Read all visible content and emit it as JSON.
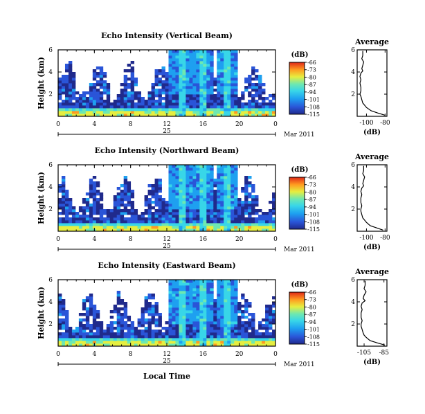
{
  "chart_data": [
    {
      "type": "heatmap",
      "title": "Echo Intensity (Vertical Beam)",
      "ylabel": "Height (km)",
      "xlabel": "",
      "x_ticks": [
        "0",
        "4",
        "8",
        "12",
        "16",
        "20",
        "0"
      ],
      "y_ticks": [
        "2",
        "4",
        "6"
      ],
      "xlim": [
        0,
        24
      ],
      "ylim": [
        0,
        6
      ],
      "date_day": "25",
      "date_label": "Mar 2011",
      "colorbar": {
        "unit": "(dB)",
        "ticks": [
          "-66",
          "-73",
          "-80",
          "-87",
          "-94",
          "-101",
          "-108",
          "-115"
        ]
      },
      "average": {
        "title": "Average",
        "xlabel": "(dB)",
        "x_ticks": [
          "-100",
          "-80"
        ],
        "y_ticks": [
          "2",
          "4",
          "6"
        ],
        "xlim": [
          -110,
          -78
        ],
        "ylim": [
          0,
          6
        ],
        "profile": {
          "height": [
            0.1,
            0.3,
            0.5,
            0.8,
            1.0,
            1.2,
            1.5,
            1.8,
            2.0,
            2.3,
            2.6,
            3.0,
            3.3,
            3.6,
            3.9,
            4.1,
            4.3,
            4.6,
            4.9,
            5.2,
            5.5,
            5.9
          ],
          "db": [
            -80,
            -88,
            -95,
            -100,
            -102,
            -104,
            -105,
            -106,
            -107,
            -106,
            -106,
            -107,
            -106,
            -107,
            -106,
            -104,
            -105,
            -104,
            -103,
            -105,
            -104,
            -104
          ]
        }
      }
    },
    {
      "type": "heatmap",
      "title": "Echo Intensity (Northward Beam)",
      "ylabel": "Height (km)",
      "xlabel": "",
      "x_ticks": [
        "0",
        "4",
        "8",
        "12",
        "16",
        "20",
        "0"
      ],
      "y_ticks": [
        "2",
        "4",
        "6"
      ],
      "xlim": [
        0,
        24
      ],
      "ylim": [
        0,
        6
      ],
      "date_day": "25",
      "date_label": "Mar 2011",
      "colorbar": {
        "unit": "(dB)",
        "ticks": [
          "-66",
          "-73",
          "-80",
          "-87",
          "-94",
          "-101",
          "-108",
          "-115"
        ]
      },
      "average": {
        "title": "Average",
        "xlabel": "(dB)",
        "x_ticks": [
          "-100",
          "-80"
        ],
        "y_ticks": [
          "2",
          "4",
          "6"
        ],
        "xlim": [
          -110,
          -78
        ],
        "ylim": [
          0,
          6
        ],
        "profile": {
          "height": [
            0.1,
            0.3,
            0.5,
            0.8,
            1.0,
            1.2,
            1.5,
            1.8,
            2.0,
            2.3,
            2.6,
            3.0,
            3.3,
            3.6,
            3.9,
            4.1,
            4.3,
            4.6,
            4.9,
            5.2,
            5.5,
            5.9
          ],
          "db": [
            -82,
            -89,
            -96,
            -100,
            -102,
            -104,
            -105,
            -106,
            -106,
            -105,
            -106,
            -106,
            -105,
            -106,
            -105,
            -103,
            -104,
            -103,
            -102,
            -104,
            -103,
            -103
          ]
        }
      }
    },
    {
      "type": "heatmap",
      "title": "Echo Intensity (Eastward Beam)",
      "ylabel": "Height (km)",
      "xlabel": "Local Time",
      "x_ticks": [
        "0",
        "4",
        "8",
        "12",
        "16",
        "20",
        "0"
      ],
      "y_ticks": [
        "2",
        "4",
        "6"
      ],
      "xlim": [
        0,
        24
      ],
      "ylim": [
        0,
        6
      ],
      "date_day": "25",
      "date_label": "Mar 2011",
      "colorbar": {
        "unit": "(dB)",
        "ticks": [
          "-66",
          "-73",
          "-80",
          "-87",
          "-94",
          "-101",
          "-108",
          "-115"
        ]
      },
      "average": {
        "title": "Average",
        "xlabel": "(dB)",
        "x_ticks": [
          "-105",
          "-85"
        ],
        "y_ticks": [
          "2",
          "4",
          "6"
        ],
        "xlim": [
          -112,
          -82
        ],
        "ylim": [
          0,
          6
        ],
        "profile": {
          "height": [
            0.1,
            0.3,
            0.5,
            0.8,
            1.0,
            1.2,
            1.5,
            1.8,
            2.0,
            2.3,
            2.6,
            3.0,
            3.3,
            3.6,
            3.9,
            4.1,
            4.3,
            4.6,
            4.9,
            5.2,
            5.5,
            5.9
          ],
          "db": [
            -84,
            -92,
            -99,
            -103,
            -105,
            -106,
            -107,
            -108,
            -108,
            -107,
            -108,
            -108,
            -107,
            -108,
            -107,
            -104,
            -106,
            -105,
            -103,
            -105,
            -104,
            -104
          ]
        }
      }
    }
  ]
}
